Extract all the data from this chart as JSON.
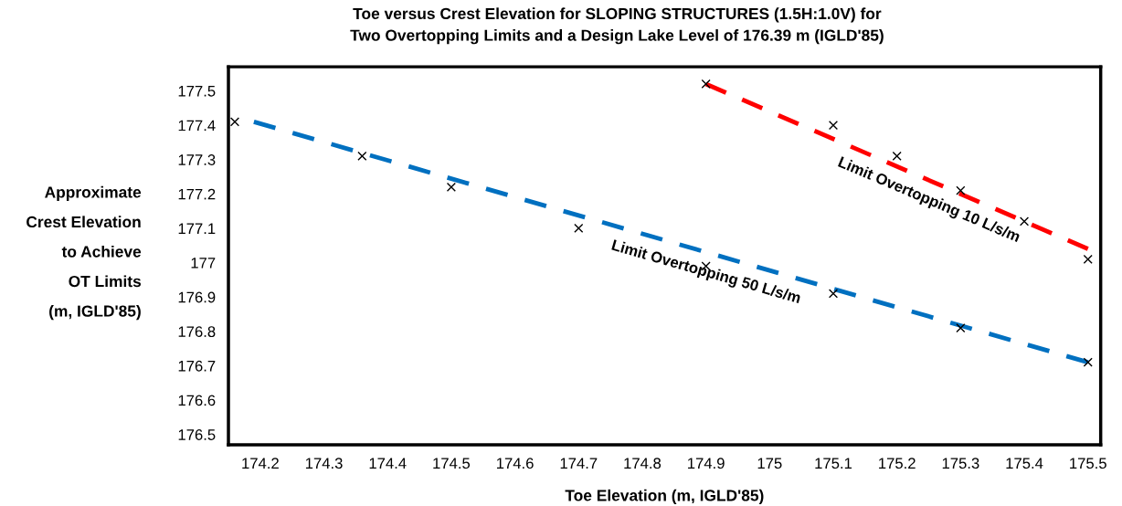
{
  "chart_data": {
    "type": "scatter",
    "title": "Toe versus Crest Elevation for SLOPING STRUCTURES (1.5H:1.0V) for\nTwo Overtopping Limits and a Design Lake Level of 176.39 m (IGLD'85)",
    "xlabel": "Toe Elevation (m, IGLD'85)",
    "ylabel": "Approximate\nCrest Elevation\nto Achieve\nOT Limits\n(m, IGLD'85)",
    "series": [
      {
        "color": "#000000",
        "marker": "cross",
        "x": [
          174.16,
          174.36,
          174.5,
          174.7,
          174.9,
          175.1,
          175.3,
          175.5
        ],
        "values": [
          177.41,
          177.31,
          177.22,
          177.1,
          176.99,
          176.91,
          176.81,
          176.71
        ]
      },
      {
        "color": "#000000",
        "marker": "cross",
        "x": [
          174.9,
          175.1,
          175.2,
          175.3,
          175.4,
          175.5
        ],
        "values": [
          177.52,
          177.4,
          177.31,
          177.21,
          177.12,
          177.01
        ]
      },
      {
        "type": "line",
        "color": "#0070c0",
        "line_style": "dashed",
        "x": [
          174.19,
          175.5
        ],
        "values": [
          177.41,
          176.71
        ]
      },
      {
        "type": "line",
        "color": "#ff0000",
        "line_style": "dashed",
        "x": [
          174.9,
          175.5
        ],
        "values": [
          177.52,
          177.04
        ]
      }
    ],
    "annotations": [
      {
        "text": "Limit Overtopping 50 L/s/m",
        "x": 174.9,
        "y": 177.03
      },
      {
        "text": "Limit Overtopping 10 L/s/m",
        "x": 175.25,
        "y": 177.24
      }
    ],
    "xlim": [
      174.15,
      175.52
    ],
    "ylim": [
      176.47,
      177.57
    ],
    "xticks": [
      174.2,
      174.3,
      174.4,
      174.5,
      174.6,
      174.7,
      174.8,
      174.9,
      175,
      175.1,
      175.2,
      175.3,
      175.4,
      175.5
    ],
    "yticks": [
      176.5,
      176.6,
      176.7,
      176.8,
      176.9,
      177,
      177.1,
      177.2,
      177.3,
      177.4,
      177.5
    ],
    "grid": false,
    "legend": false
  }
}
